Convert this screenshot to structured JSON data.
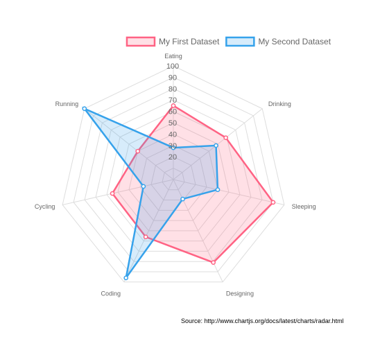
{
  "chart_data": {
    "type": "radar",
    "categories": [
      "Eating",
      "Drinking",
      "Sleeping",
      "Designing",
      "Coding",
      "Cycling",
      "Running"
    ],
    "rlim": [
      0,
      100
    ],
    "ticks": [
      "20",
      "30",
      "40",
      "50",
      "60",
      "70",
      "80",
      "90",
      "100"
    ],
    "tick_values": [
      20,
      30,
      40,
      50,
      60,
      70,
      80,
      90,
      100
    ],
    "grid": true,
    "legend_position": "top-right",
    "series": [
      {
        "name": "My First Dataset",
        "values": [
          65,
          59,
          90,
          81,
          56,
          55,
          40
        ],
        "stroke": "#ff6384",
        "fill": "rgba(255,99,132,0.2)"
      },
      {
        "name": "My Second Dataset",
        "values": [
          28,
          48,
          40,
          19,
          96,
          27,
          100
        ],
        "stroke": "#36a2eb",
        "fill": "rgba(54,162,235,0.2)"
      }
    ]
  },
  "source_note": "Source: http://www.chartjs.org/docs/latest/charts/radar.html",
  "colors": {
    "grid": "#dddddd",
    "text": "#666666"
  }
}
